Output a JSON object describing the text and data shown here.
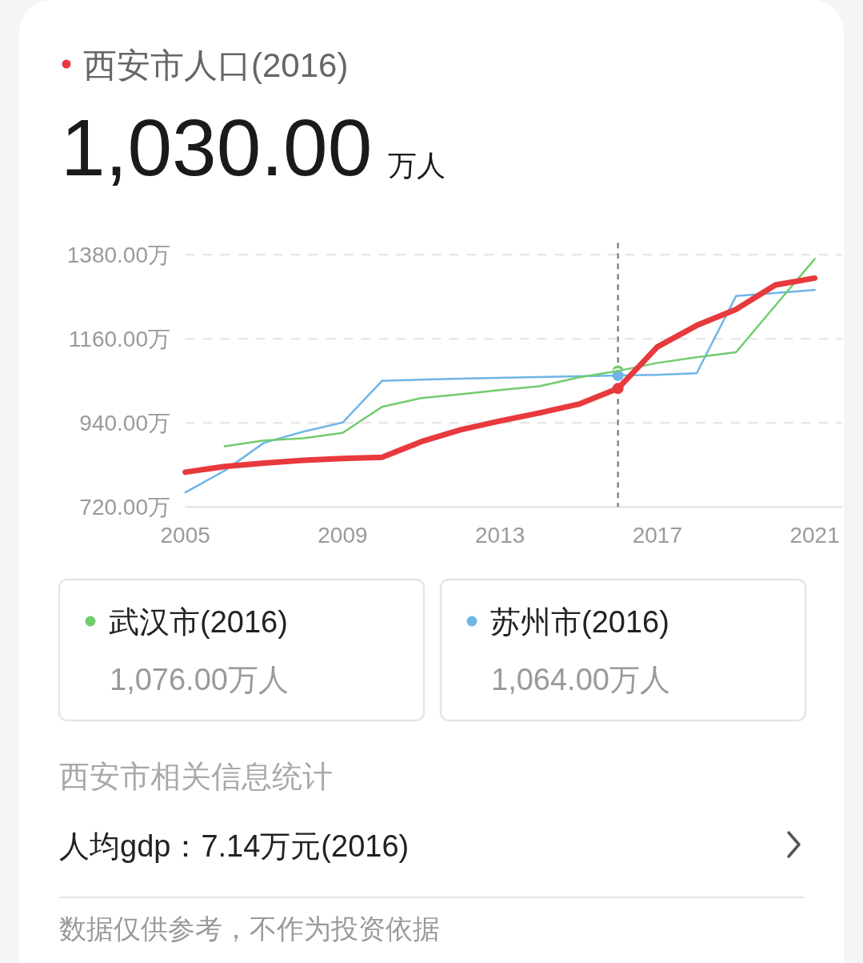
{
  "chart_data": {
    "type": "line",
    "title": "西安市人口(2016)",
    "subtitle": "1,030.00 万人",
    "x": [
      2005,
      2006,
      2007,
      2008,
      2009,
      2010,
      2011,
      2012,
      2013,
      2014,
      2015,
      2016,
      2017,
      2018,
      2019,
      2020,
      2021
    ],
    "xlim": [
      2005,
      2021.7
    ],
    "xticks": [
      2005,
      2009,
      2013,
      2017,
      2021
    ],
    "ylim": [
      720,
      1380
    ],
    "yticks": [
      {
        "value": 720,
        "label": "720.00万"
      },
      {
        "value": 940,
        "label": "940.00万"
      },
      {
        "value": 1160,
        "label": "1160.00万"
      },
      {
        "value": 1380,
        "label": "1380.00万"
      }
    ],
    "grid": "y",
    "legend": "bottom",
    "series": [
      {
        "color": "#e8393d",
        "values": [
          811,
          826,
          835,
          842,
          847,
          850,
          891,
          922,
          945,
          966,
          989,
          1030,
          1139,
          1195,
          1237,
          1301,
          1319
        ]
      },
      {
        "name": "武汉市(2016)",
        "color": "#72cc6e",
        "values": [
          null,
          879,
          894,
          900,
          914,
          982,
          1005,
          1015,
          1026,
          1036,
          1059,
          1076,
          1097,
          1112,
          1125,
          1247,
          1369
        ]
      },
      {
        "name": "苏州市(2016)",
        "color": "#6fb5e6",
        "values": [
          758,
          815,
          888,
          917,
          941,
          1050,
          1053,
          1056,
          1058,
          1060,
          1062,
          1064,
          1066,
          1070,
          1272,
          1280,
          1288
        ]
      },
      {
        "type": "scatter",
        "color": "#e8393d",
        "marker": "circle",
        "values": [
          null,
          null,
          null,
          null,
          null,
          null,
          null,
          null,
          null,
          null,
          null,
          1030,
          null,
          null,
          null,
          null,
          null
        ]
      },
      {
        "type": "scatter",
        "color": "#72cc6e",
        "marker": "circle",
        "values": [
          null,
          null,
          null,
          null,
          null,
          null,
          null,
          null,
          null,
          null,
          null,
          1076,
          null,
          null,
          null,
          null,
          null
        ]
      },
      {
        "type": "scatter",
        "color": "#6fb5e6",
        "marker": "circle",
        "values": [
          null,
          null,
          null,
          null,
          null,
          null,
          null,
          null,
          null,
          null,
          null,
          1064,
          null,
          null,
          null,
          null,
          null
        ]
      }
    ],
    "ref_lines": [
      {
        "axis": "x",
        "value": 2016,
        "color": "#888888",
        "line_style": "dashed"
      }
    ],
    "annotations": [
      "1,076.00万人",
      "1,064.00万人",
      "西安市相关信息统计",
      "人均gdp：7.14万元(2016)",
      "数据仅供参考，不作为投资依据"
    ]
  }
}
